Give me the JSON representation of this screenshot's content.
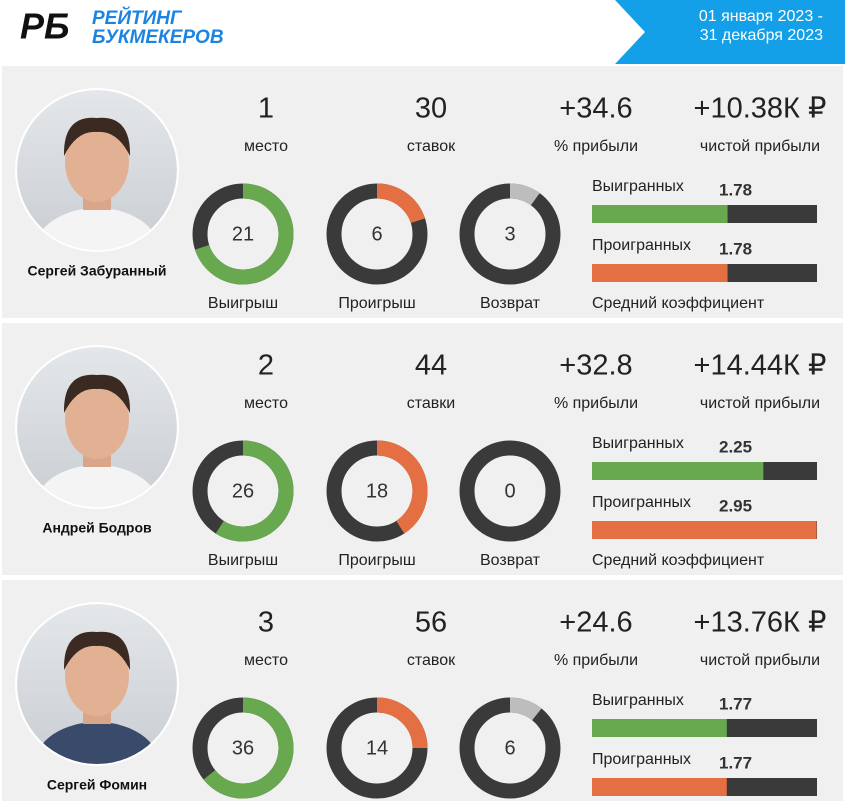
{
  "header": {
    "logo_mark": "РБ",
    "logo_text": [
      "РЕЙТИНГ",
      "БУКМЕКЕРОВ"
    ],
    "period": [
      "01 января 2023 -",
      "31 декабря 2023"
    ]
  },
  "tipsters": [
    {
      "name": "Сергей Забуранный",
      "place": 1,
      "place_label": "место",
      "bets": 30,
      "bets_label": "ставок",
      "profit_percent": "+34.6",
      "profit_percent_label": "% прибыли",
      "net_profit": "+10.38К ₽",
      "net_profit_label": "чистой прибыли",
      "wins": 21,
      "wins_label": "Выигрыш",
      "losses": 6,
      "losses_label": "Проигрыш",
      "returns": 3,
      "returns_label": "Возврат",
      "won_label": "Выигранных",
      "won_odds": 1.78,
      "lost_label": "Проигранных",
      "lost_odds": 1.78,
      "odds_label": "Средний коэффициент"
    },
    {
      "name": "Андрей Бодров",
      "place": 2,
      "place_label": "место",
      "bets": 44,
      "bets_label": "ставки",
      "profit_percent": "+32.8",
      "profit_percent_label": "% прибыли",
      "net_profit": "+14.44К ₽",
      "net_profit_label": "чистой прибыли",
      "wins": 26,
      "wins_label": "Выигрыш",
      "losses": 18,
      "losses_label": "Проигрыш",
      "returns": 0,
      "returns_label": "Возврат",
      "won_label": "Выигранных",
      "won_odds": 2.25,
      "lost_label": "Проигранных",
      "lost_odds": 2.95,
      "odds_label": "Средний коэффициент"
    },
    {
      "name": "Сергей Фомин",
      "place": 3,
      "place_label": "место",
      "bets": 56,
      "bets_label": "ставок",
      "profit_percent": "+24.6",
      "profit_percent_label": "% прибыли",
      "net_profit": "+13.76К ₽",
      "net_profit_label": "чистой прибыли",
      "wins": 36,
      "losses": 14,
      "returns": 6,
      "won_label": "Выигранных",
      "won_odds": 1.77,
      "lost_label": "Проигранных",
      "lost_odds": 1.77
    }
  ]
}
